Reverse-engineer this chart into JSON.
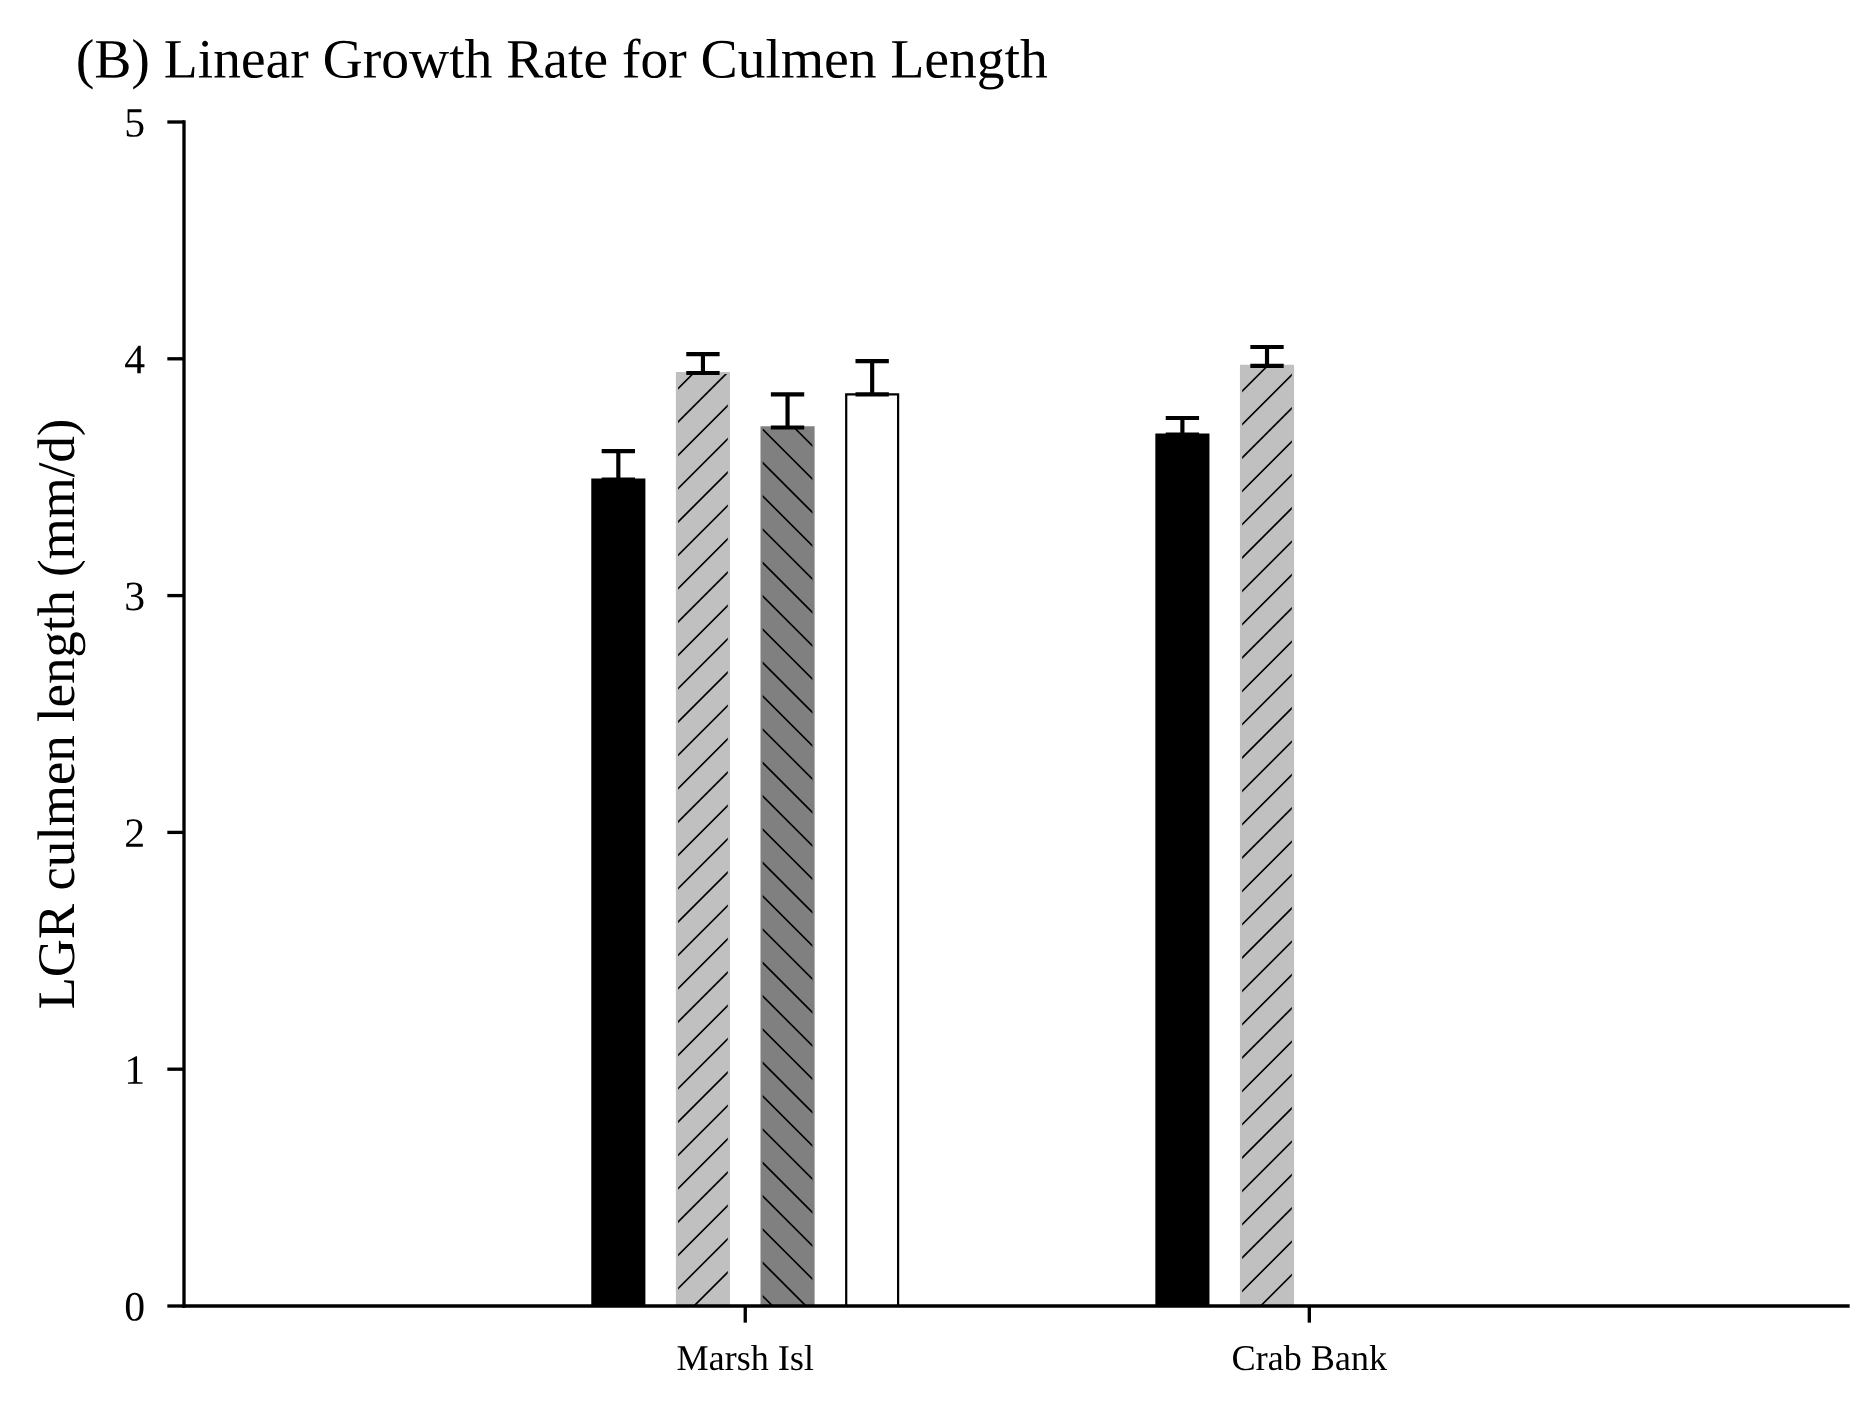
{
  "chart_data": {
    "type": "bar",
    "title": "(B) Linear Growth Rate for Culmen Length",
    "ylabel": "LGR culmen length (mm/d)",
    "categories": [
      "Marsh Isl",
      "Crab Bank"
    ],
    "series": [
      {
        "color": "#000000",
        "values": [
          3.49,
          3.68
        ],
        "errors": [
          [
            3.49,
            3.61
          ],
          [
            3.68,
            3.75
          ]
        ]
      },
      {
        "color": "#c0c0c0",
        "values": [
          3.94,
          3.97
        ],
        "errors": [
          [
            3.94,
            4.02
          ],
          [
            3.97,
            4.05
          ]
        ]
      },
      {
        "color": "#808080",
        "values": [
          3.71,
          null
        ],
        "errors": [
          [
            3.71,
            3.85
          ],
          null
        ]
      },
      {
        "color": "#ffffff",
        "values": [
          3.85,
          null
        ],
        "errors": [
          [
            3.85,
            3.99
          ],
          null
        ]
      }
    ],
    "ylim": [
      0,
      5
    ],
    "yticks": [
      0,
      1,
      2,
      3,
      4,
      5
    ],
    "grid": false,
    "legend": false
  }
}
